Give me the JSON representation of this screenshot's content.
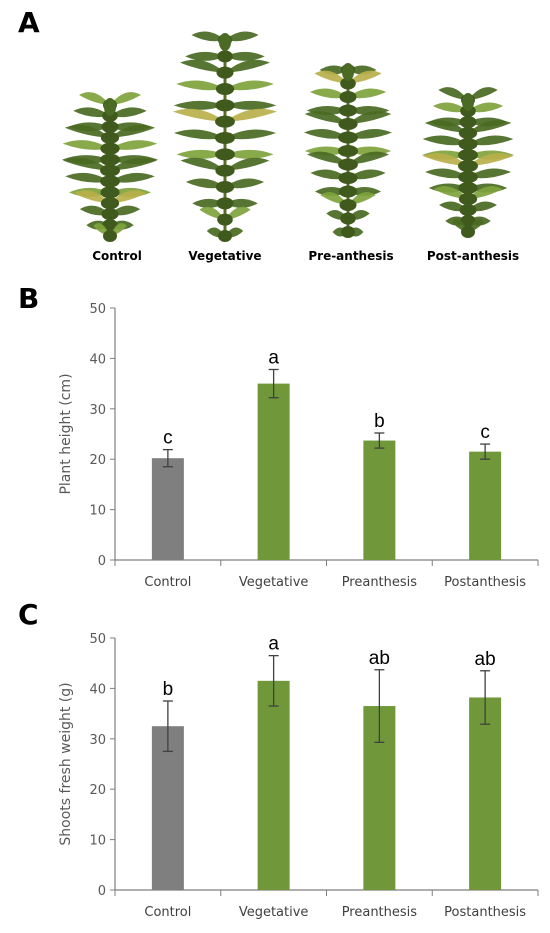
{
  "panels": {
    "a": "A",
    "b": "B",
    "c": "C"
  },
  "plant_labels": [
    "Control",
    "Vegetative",
    "Pre-anthesis",
    "Post-anthesis"
  ],
  "colors": {
    "control": "#7f7f7f",
    "treatment": "#70983a",
    "leaf_dark": "#4a6a22",
    "leaf_light": "#7ea33c",
    "leaf_yellow": "#b8b04a"
  },
  "chart_data": [
    {
      "type": "bar",
      "categories": [
        "Control",
        "Vegetative",
        "Preanthesis",
        "Postanthesis"
      ],
      "values": [
        20.2,
        35.0,
        23.7,
        21.5
      ],
      "errors": [
        1.7,
        2.8,
        1.5,
        1.5
      ],
      "significance": [
        "c",
        "a",
        "b",
        "c"
      ],
      "title": "",
      "xlabel": "",
      "ylabel": "Plant height (cm)",
      "ylim": [
        0,
        50
      ],
      "yticks": [
        0,
        10,
        20,
        30,
        40,
        50
      ],
      "grid": false
    },
    {
      "type": "bar",
      "categories": [
        "Control",
        "Vegetative",
        "Preanthesis",
        "Postanthesis"
      ],
      "values": [
        32.5,
        41.5,
        36.5,
        38.2
      ],
      "errors": [
        5.0,
        5.0,
        7.2,
        5.3
      ],
      "significance": [
        "b",
        "a",
        "ab",
        "ab"
      ],
      "title": "",
      "xlabel": "",
      "ylabel": "Shoots fresh weight (g)",
      "ylim": [
        0,
        50
      ],
      "yticks": [
        0,
        10,
        20,
        30,
        40,
        50
      ],
      "grid": false
    }
  ]
}
